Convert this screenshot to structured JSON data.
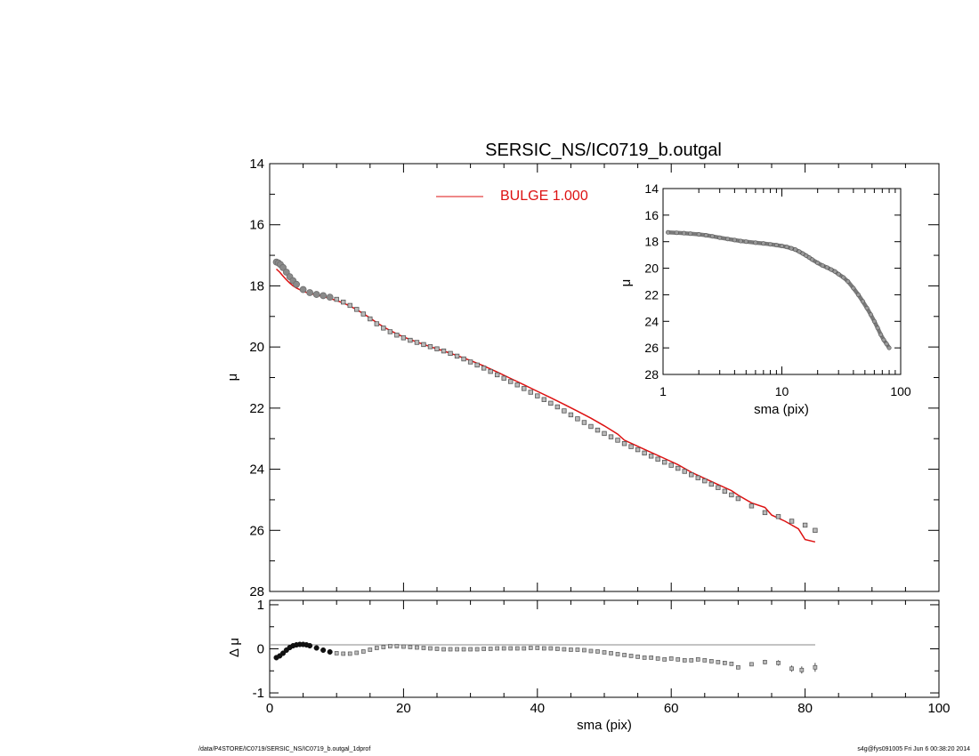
{
  "colors": {
    "model": "#dd1111",
    "data_edge": "#555555",
    "data_fill": "#bbbbbb",
    "axis": "#000000",
    "zero_line": "#888888"
  },
  "footer": {
    "left": "/data/P4STORE/IC0719/SERSIC_NS/IC0719_b.outgal_1dprof",
    "right": "s4g@fys091005  Fri Jun  6 00:38:20 2014"
  },
  "chart_data": [
    {
      "id": "main_profile",
      "type": "scatter",
      "title": "SERSIC_NS/IC0719_b.outgal",
      "xlabel": "",
      "ylabel": "μ",
      "xlim": [
        0,
        100
      ],
      "ylim": [
        28,
        14
      ],
      "y_inverted": true,
      "yticks": [
        14,
        16,
        18,
        20,
        22,
        24,
        26,
        28
      ],
      "legend": [
        {
          "label": "BULGE  1.000",
          "placement": "top-center"
        }
      ],
      "series": [
        {
          "kind": "data",
          "x": [
            1.0,
            1.3,
            1.6,
            2.0,
            2.5,
            3.0,
            3.5,
            4.0,
            5.0,
            6.0,
            7.0,
            8.0,
            9.0,
            10.0,
            11.0,
            12.0,
            13.0,
            14.0,
            15.0,
            16.0,
            17.0,
            18.0,
            19.0,
            20.0,
            21.0,
            22.0,
            23.0,
            24.0,
            25.0,
            26.0,
            27.0,
            28.0,
            29.0,
            30.0,
            31.0,
            32.0,
            33.0,
            34.0,
            35.0,
            36.0,
            37.0,
            38.0,
            39.0,
            40.0,
            41.0,
            42.0,
            43.0,
            44.0,
            45.0,
            46.0,
            47.0,
            48.0,
            49.0,
            50.0,
            51.0,
            52.0,
            53.0,
            54.0,
            55.0,
            56.0,
            57.0,
            58.0,
            59.0,
            60.0,
            61.0,
            62.0,
            63.0,
            64.0,
            65.0,
            66.0,
            67.0,
            68.0,
            69.0,
            70.0,
            72.0,
            74.0,
            76.0,
            78.0,
            80.0,
            81.5
          ],
          "y": [
            17.22,
            17.25,
            17.3,
            17.4,
            17.55,
            17.7,
            17.83,
            17.95,
            18.12,
            18.22,
            18.28,
            18.32,
            18.37,
            18.44,
            18.53,
            18.64,
            18.77,
            18.92,
            19.08,
            19.24,
            19.38,
            19.5,
            19.61,
            19.7,
            19.78,
            19.85,
            19.92,
            19.99,
            20.06,
            20.13,
            20.21,
            20.3,
            20.39,
            20.49,
            20.59,
            20.69,
            20.8,
            20.91,
            21.02,
            21.13,
            21.24,
            21.36,
            21.48,
            21.6,
            21.72,
            21.84,
            21.96,
            22.09,
            22.22,
            22.35,
            22.47,
            22.6,
            22.72,
            22.83,
            22.94,
            23.05,
            23.16,
            23.26,
            23.36,
            23.47,
            23.57,
            23.67,
            23.77,
            23.87,
            23.97,
            24.07,
            24.18,
            24.28,
            24.38,
            24.49,
            24.6,
            24.72,
            24.84,
            24.96,
            25.2,
            25.42,
            25.55,
            25.7,
            25.83,
            26.0
          ]
        },
        {
          "kind": "model",
          "name": "BULGE  1.000",
          "x": [
            1.0,
            1.5,
            2.0,
            2.5,
            3.0,
            3.5,
            4.0,
            5.0,
            6.0,
            7.0,
            8.0,
            9.0,
            10.0,
            11.0,
            12.0,
            13.0,
            14.0,
            15.0,
            16.0,
            17.0,
            18.0,
            19.0,
            20.0,
            22.0,
            24.0,
            26.0,
            28.0,
            30.0,
            32.0,
            34.0,
            36.0,
            38.0,
            40.0,
            42.0,
            44.0,
            46.0,
            48.0,
            50.0,
            52.0,
            53.0,
            55.0,
            57.0,
            59.0,
            61.0,
            63.0,
            65.0,
            67.0,
            69.0,
            70.0,
            72.0,
            74.0,
            75.0,
            77.0,
            79.0,
            80.0,
            81.5
          ],
          "y": [
            17.45,
            17.55,
            17.68,
            17.8,
            17.91,
            18.0,
            18.07,
            18.18,
            18.25,
            18.3,
            18.35,
            18.41,
            18.48,
            18.56,
            18.66,
            18.78,
            18.91,
            19.05,
            19.2,
            19.34,
            19.46,
            19.57,
            19.67,
            19.84,
            19.99,
            20.13,
            20.28,
            20.44,
            20.62,
            20.82,
            21.03,
            21.24,
            21.45,
            21.66,
            21.88,
            22.1,
            22.33,
            22.58,
            22.85,
            23.05,
            23.25,
            23.45,
            23.65,
            23.85,
            24.1,
            24.3,
            24.5,
            24.7,
            24.85,
            25.1,
            25.25,
            25.5,
            25.7,
            25.95,
            26.3,
            26.38
          ]
        }
      ]
    },
    {
      "id": "residuals",
      "type": "scatter",
      "xlabel": "sma (pix)",
      "ylabel": "Δ μ",
      "xlim": [
        0,
        100
      ],
      "ylim": [
        -1.1,
        1.1
      ],
      "xticks": [
        0,
        20,
        40,
        60,
        80,
        100
      ],
      "yticks": [
        -1,
        0,
        1
      ],
      "series": [
        {
          "kind": "residual",
          "x": [
            1.0,
            1.5,
            2.0,
            2.5,
            3.0,
            3.5,
            4.0,
            4.5,
            5.0,
            5.5,
            6.0,
            7.0,
            8.0,
            9.0,
            10.0,
            11.0,
            12.0,
            13.0,
            14.0,
            15.0,
            16.0,
            17.0,
            18.0,
            19.0,
            20.0,
            21.0,
            22.0,
            23.0,
            24.0,
            25.0,
            26.0,
            27.0,
            28.0,
            29.0,
            30.0,
            31.0,
            32.0,
            33.0,
            34.0,
            35.0,
            36.0,
            37.0,
            38.0,
            39.0,
            40.0,
            41.0,
            42.0,
            43.0,
            44.0,
            45.0,
            46.0,
            47.0,
            48.0,
            49.0,
            50.0,
            51.0,
            52.0,
            53.0,
            54.0,
            55.0,
            56.0,
            57.0,
            58.0,
            59.0,
            60.0,
            61.0,
            62.0,
            63.0,
            64.0,
            65.0,
            66.0,
            67.0,
            68.0,
            69.0,
            70.0,
            72.0,
            74.0,
            76.0,
            78.0,
            79.5,
            81.5
          ],
          "y": [
            -0.2,
            -0.16,
            -0.1,
            -0.03,
            0.03,
            0.07,
            0.09,
            0.1,
            0.1,
            0.09,
            0.07,
            0.02,
            -0.03,
            -0.07,
            -0.1,
            -0.11,
            -0.11,
            -0.09,
            -0.06,
            -0.02,
            0.02,
            0.04,
            0.06,
            0.06,
            0.05,
            0.04,
            0.03,
            0.02,
            0.01,
            0.0,
            -0.01,
            -0.01,
            -0.01,
            -0.01,
            -0.01,
            -0.01,
            0.0,
            0.0,
            0.01,
            0.01,
            0.01,
            0.01,
            0.01,
            0.02,
            0.02,
            0.01,
            0.01,
            0.0,
            -0.01,
            -0.02,
            -0.02,
            -0.03,
            -0.05,
            -0.06,
            -0.08,
            -0.1,
            -0.12,
            -0.14,
            -0.16,
            -0.18,
            -0.2,
            -0.2,
            -0.22,
            -0.24,
            -0.22,
            -0.24,
            -0.26,
            -0.26,
            -0.24,
            -0.26,
            -0.28,
            -0.3,
            -0.32,
            -0.34,
            -0.42,
            -0.35,
            -0.3,
            -0.32,
            -0.45,
            -0.48,
            -0.42
          ],
          "err": [
            0.01,
            0.01,
            0.01,
            0.01,
            0.01,
            0.01,
            0.01,
            0.01,
            0.01,
            0.01,
            0.01,
            0.01,
            0.01,
            0.01,
            0.01,
            0.01,
            0.01,
            0.01,
            0.01,
            0.01,
            0.01,
            0.01,
            0.01,
            0.01,
            0.01,
            0.01,
            0.01,
            0.01,
            0.01,
            0.01,
            0.01,
            0.01,
            0.01,
            0.01,
            0.01,
            0.01,
            0.01,
            0.01,
            0.01,
            0.01,
            0.01,
            0.01,
            0.01,
            0.01,
            0.01,
            0.01,
            0.01,
            0.01,
            0.01,
            0.01,
            0.01,
            0.01,
            0.01,
            0.01,
            0.01,
            0.01,
            0.01,
            0.01,
            0.01,
            0.01,
            0.01,
            0.01,
            0.01,
            0.01,
            0.01,
            0.01,
            0.01,
            0.01,
            0.01,
            0.01,
            0.01,
            0.01,
            0.01,
            0.01,
            0.02,
            0.04,
            0.05,
            0.06,
            0.07,
            0.08,
            0.1
          ]
        }
      ]
    },
    {
      "id": "inset_log_profile",
      "type": "scatter",
      "xlabel": "sma (pix)",
      "ylabel": "μ",
      "x_scale": "log",
      "xlim": [
        1,
        100
      ],
      "ylim": [
        28,
        14
      ],
      "y_inverted": true,
      "xticks": [
        1,
        10,
        100
      ],
      "yticks": [
        14,
        16,
        18,
        20,
        22,
        24,
        26,
        28
      ],
      "series": [
        {
          "kind": "data",
          "x": [
            1.1,
            1.3,
            1.5,
            1.7,
            2.0,
            2.3,
            2.6,
            3.0,
            3.5,
            4.0,
            4.5,
            5.0,
            6.0,
            7.0,
            8.0,
            9.0,
            10.0,
            11.0,
            12.0,
            13.0,
            14.0,
            15.0,
            16.0,
            17.0,
            18.0,
            20.0,
            22.0,
            24.0,
            26.0,
            28.0,
            30.0,
            33.0,
            36.0,
            40.0,
            44.0,
            48.0,
            52.0,
            56.0,
            60.0,
            64.0,
            68.0,
            72.0,
            76.0,
            80.0
          ],
          "y": [
            17.3,
            17.33,
            17.36,
            17.4,
            17.45,
            17.52,
            17.6,
            17.7,
            17.8,
            17.88,
            17.95,
            18.0,
            18.08,
            18.14,
            18.2,
            18.26,
            18.33,
            18.4,
            18.5,
            18.6,
            18.75,
            18.9,
            19.05,
            19.2,
            19.35,
            19.6,
            19.8,
            19.95,
            20.1,
            20.25,
            20.45,
            20.7,
            21.0,
            21.5,
            22.0,
            22.5,
            23.0,
            23.5,
            24.0,
            24.5,
            25.0,
            25.4,
            25.7,
            26.0
          ]
        }
      ]
    }
  ]
}
